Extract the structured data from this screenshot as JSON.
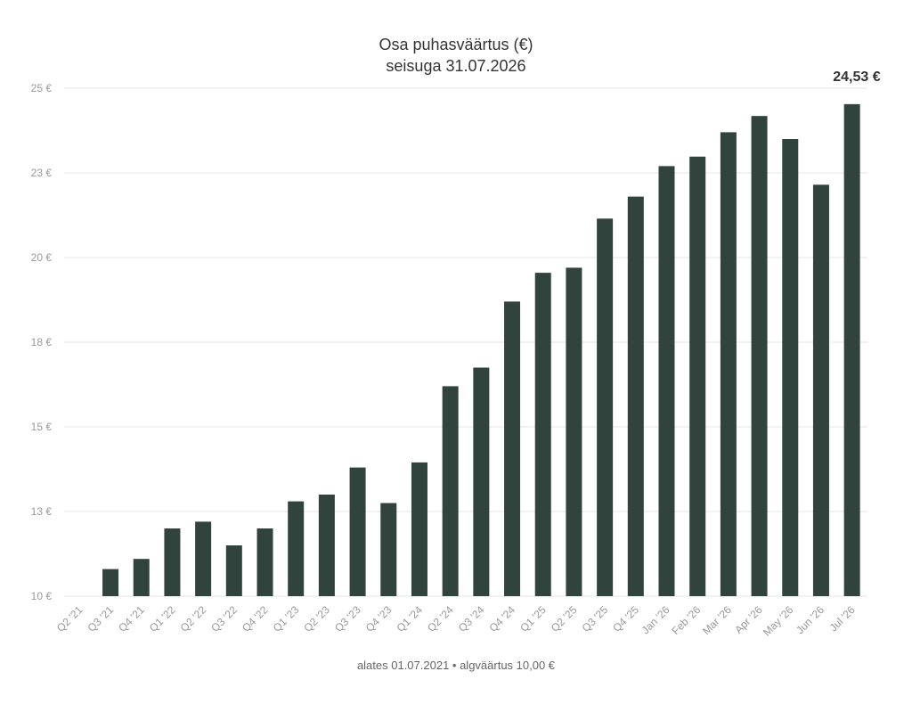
{
  "chart_data": {
    "type": "bar",
    "title": "Osa puhasväärtus (€)",
    "subtitle": "seisuga 31.07.2026",
    "footer": "alates 01.07.2021 • algväärtus 10,00 €",
    "categories": [
      "Q2 '21",
      "Q3 '21",
      "Q4 '21",
      "Q1 '22",
      "Q2 '22",
      "Q3 '22",
      "Q4 '22",
      "Q1 '23",
      "Q2 '23",
      "Q3 '23",
      "Q4 '23",
      "Q1 '24",
      "Q2 '24",
      "Q3 '24",
      "Q4 '24",
      "Q1 '25",
      "Q2 '25",
      "Q3 '25",
      "Q4 '25",
      "Jan '26",
      "Feb '26",
      "Mar '26",
      "Apr '26",
      "May '26",
      "Jun '26",
      "Jul '26"
    ],
    "values": [
      10.0,
      10.8,
      11.1,
      12.0,
      12.2,
      11.5,
      12.0,
      12.8,
      13.0,
      13.8,
      12.75,
      13.95,
      16.2,
      16.75,
      18.7,
      19.55,
      19.7,
      21.15,
      21.8,
      22.7,
      22.98,
      23.7,
      24.18,
      23.5,
      22.15,
      24.53
    ],
    "highlight_label": "24,53 €",
    "ylim": [
      10,
      25
    ],
    "y_ticks": [
      "10 €",
      "13 €",
      "15 €",
      "18 €",
      "20 €",
      "23 €",
      "25 €"
    ],
    "y_tick_values": [
      10,
      12.5,
      15,
      17.5,
      20,
      22.5,
      25
    ],
    "grid": true,
    "bar_color": "#30443d"
  }
}
